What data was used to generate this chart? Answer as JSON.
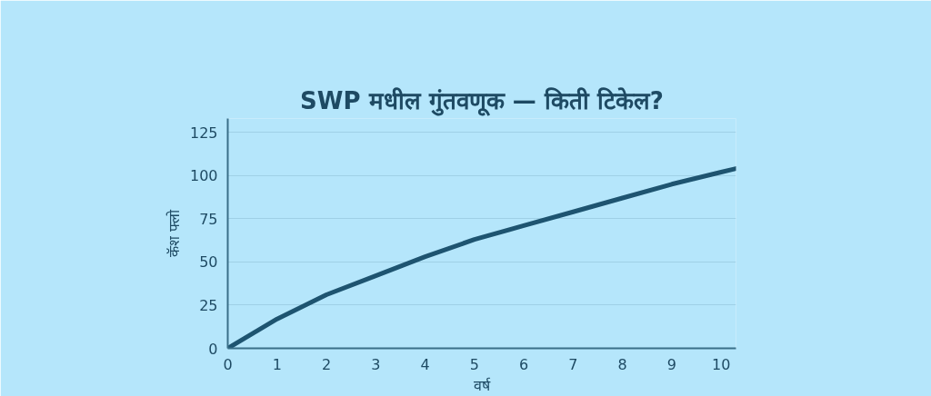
{
  "chart_data": {
    "type": "line",
    "title": "SWP मधील गुंतवणूक — किती टिकेल?",
    "xlabel": "वर्ष",
    "ylabel": "कॅश फ्लो",
    "x": [
      0,
      1,
      2,
      3,
      4,
      5,
      6,
      7,
      8,
      9,
      10,
      10.3
    ],
    "series": [
      {
        "color": "#1e5470",
        "values": [
          0,
          17,
          31,
          42,
          53,
          63,
          71,
          79,
          87,
          95,
          102,
          104
        ]
      }
    ],
    "xlim": [
      0,
      10.3
    ],
    "ylim": [
      0,
      133
    ],
    "xticks": [
      0,
      1,
      2,
      3,
      4,
      5,
      6,
      7,
      8,
      9,
      10
    ],
    "yticks": [
      0,
      25,
      50,
      75,
      100,
      125
    ],
    "grid": "y",
    "marker": "none",
    "line_style": "solid"
  }
}
